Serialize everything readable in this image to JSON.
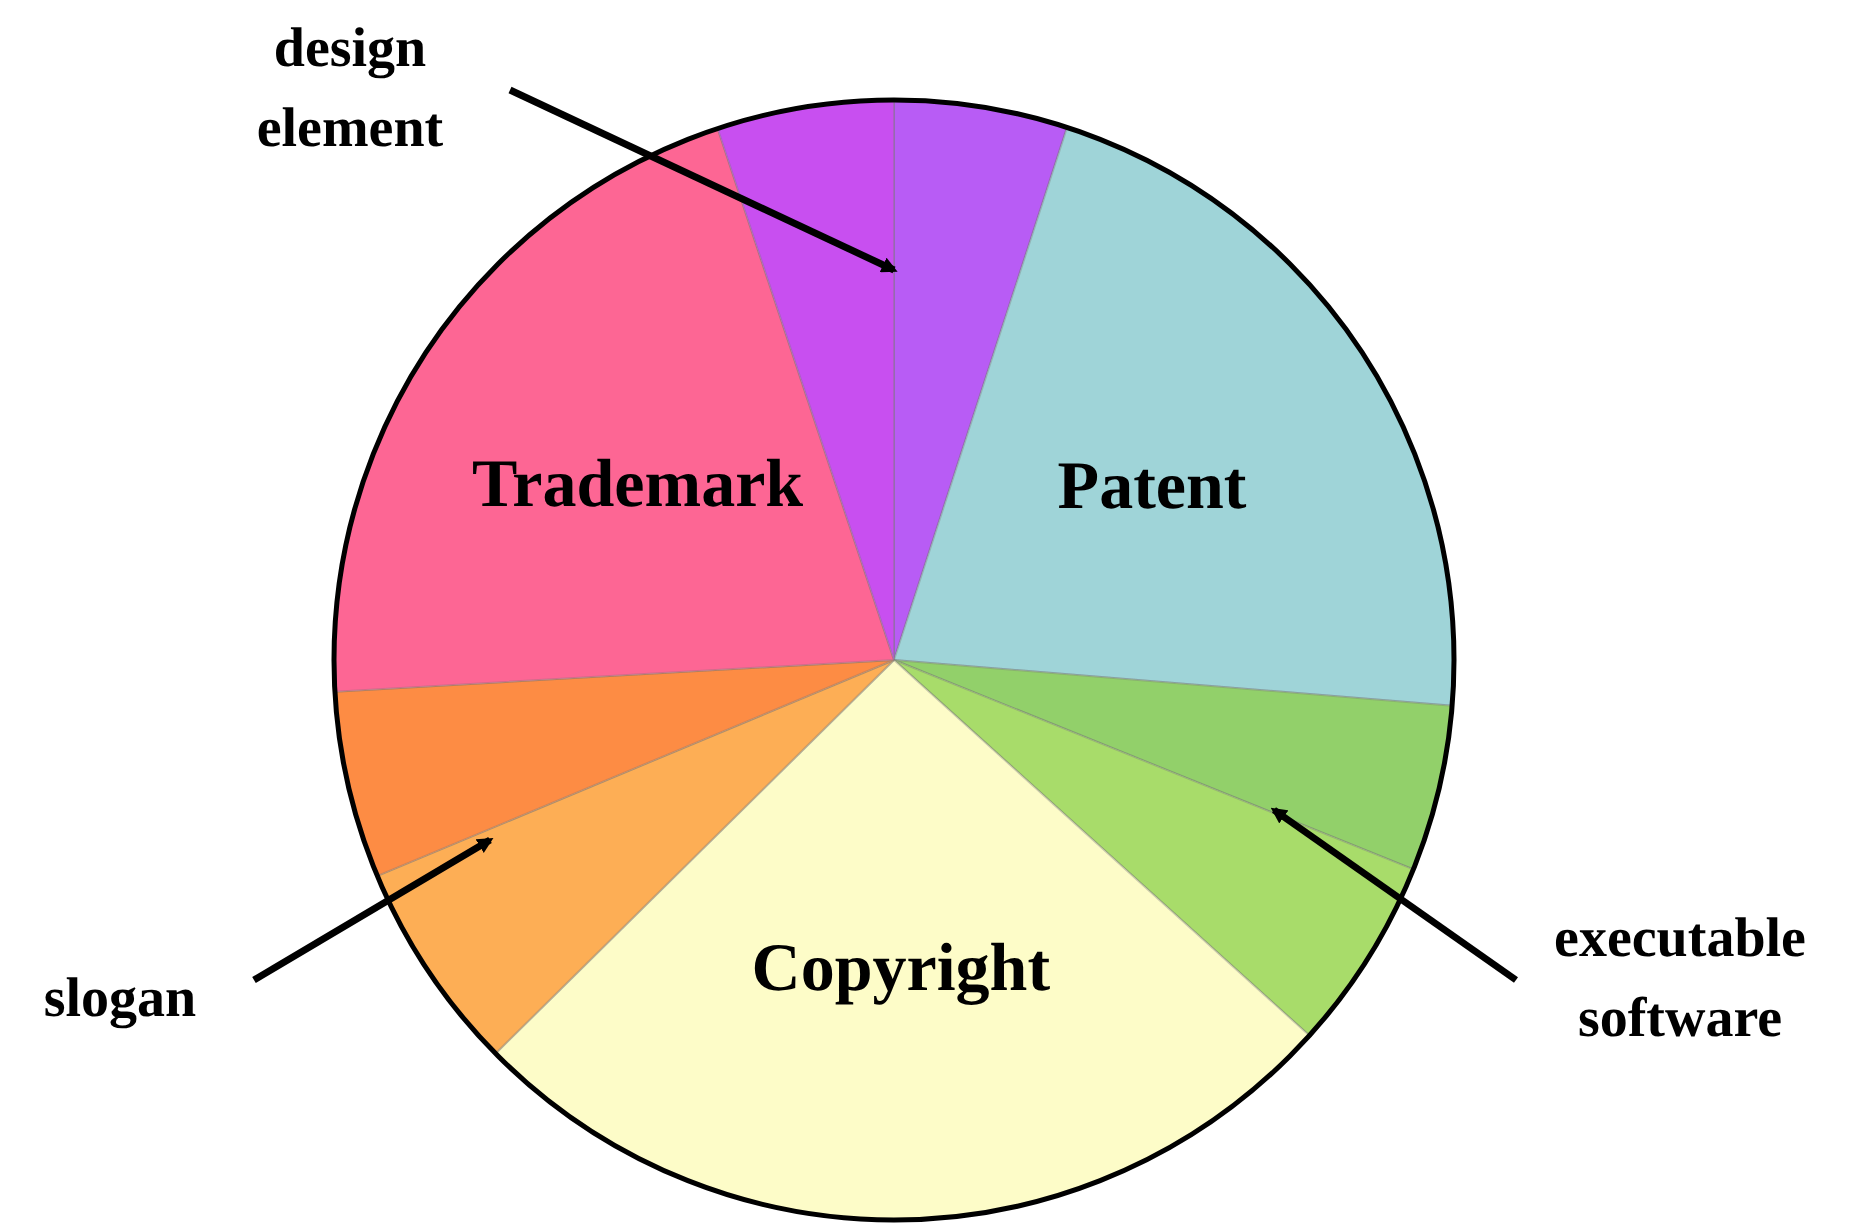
{
  "chart_data": {
    "type": "pie",
    "categories": [
      null,
      "Patent",
      null,
      null,
      "Copyright",
      null,
      null,
      "Trademark",
      null
    ],
    "values": [
      5.0,
      21.3,
      4.8,
      5.6,
      25.9,
      6.1,
      5.4,
      20.8,
      5.1
    ],
    "colors": [
      "#b85cf5",
      "#9fd4d8",
      "#92d06a",
      "#a8dc6a",
      "#fdfcc8",
      "#fdae55",
      "#fd8c44",
      "#fd6694",
      "#c84ff0"
    ],
    "annotations": [
      "design element",
      "slogan",
      "executable software"
    ]
  }
}
